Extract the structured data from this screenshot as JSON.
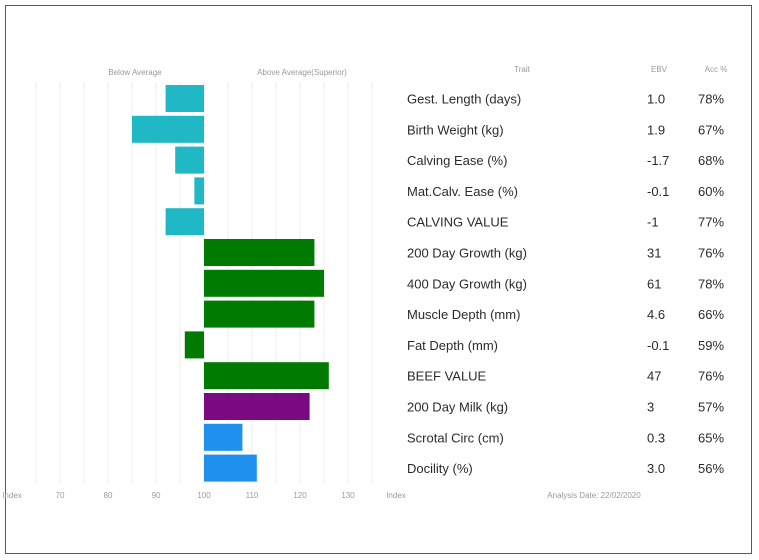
{
  "chart_data": {
    "type": "bar",
    "orientation": "horizontal",
    "header": {
      "left": "Below Average",
      "right": "Above Average(Superior)",
      "trait": "Trait",
      "ebv": "EBV",
      "acc": "Acc %"
    },
    "x_axis": {
      "title": "Index",
      "tick_labels": [
        "70",
        "80",
        "90",
        "100",
        "110",
        "120",
        "130"
      ],
      "ticks": [
        70,
        80,
        90,
        100,
        110,
        120,
        130
      ],
      "xlim": [
        60,
        140
      ],
      "baseline": 100,
      "right_title": "Index",
      "analysis_date": "Analysis Date: 22/02/2020"
    },
    "rows": [
      {
        "trait": "Gest. Length (days)",
        "ebv": "1.0",
        "acc": "78%",
        "index": 92,
        "color": "#1fb8c4"
      },
      {
        "trait": "Birth Weight (kg)",
        "ebv": "1.9",
        "acc": "67%",
        "index": 85,
        "color": "#1fb8c4"
      },
      {
        "trait": "Calving Ease (%)",
        "ebv": "-1.7",
        "acc": "68%",
        "index": 94,
        "color": "#1fb8c4"
      },
      {
        "trait": "Mat.Calv. Ease (%)",
        "ebv": "-0.1",
        "acc": "60%",
        "index": 98,
        "color": "#1fb8c4"
      },
      {
        "trait": "CALVING VALUE",
        "ebv": "-1",
        "acc": "77%",
        "index": 92,
        "color": "#1fb8c4"
      },
      {
        "trait": "200 Day Growth (kg)",
        "ebv": "31",
        "acc": "76%",
        "index": 123,
        "color": "#007a00"
      },
      {
        "trait": "400 Day Growth (kg)",
        "ebv": "61",
        "acc": "78%",
        "index": 125,
        "color": "#007a00"
      },
      {
        "trait": "Muscle Depth (mm)",
        "ebv": "4.6",
        "acc": "66%",
        "index": 123,
        "color": "#007a00"
      },
      {
        "trait": "Fat Depth (mm)",
        "ebv": "-0.1",
        "acc": "59%",
        "index": 96,
        "color": "#007a00"
      },
      {
        "trait": "BEEF VALUE",
        "ebv": "47",
        "acc": "76%",
        "index": 126,
        "color": "#007a00"
      },
      {
        "trait": "200 Day Milk (kg)",
        "ebv": "3",
        "acc": "57%",
        "index": 122,
        "color": "#7a0a7f"
      },
      {
        "trait": "Scrotal Circ (cm)",
        "ebv": "0.3",
        "acc": "65%",
        "index": 108,
        "color": "#1e90ee"
      },
      {
        "trait": "Docility (%)",
        "ebv": "3.0",
        "acc": "56%",
        "index": 111,
        "color": "#1e90ee"
      }
    ]
  }
}
